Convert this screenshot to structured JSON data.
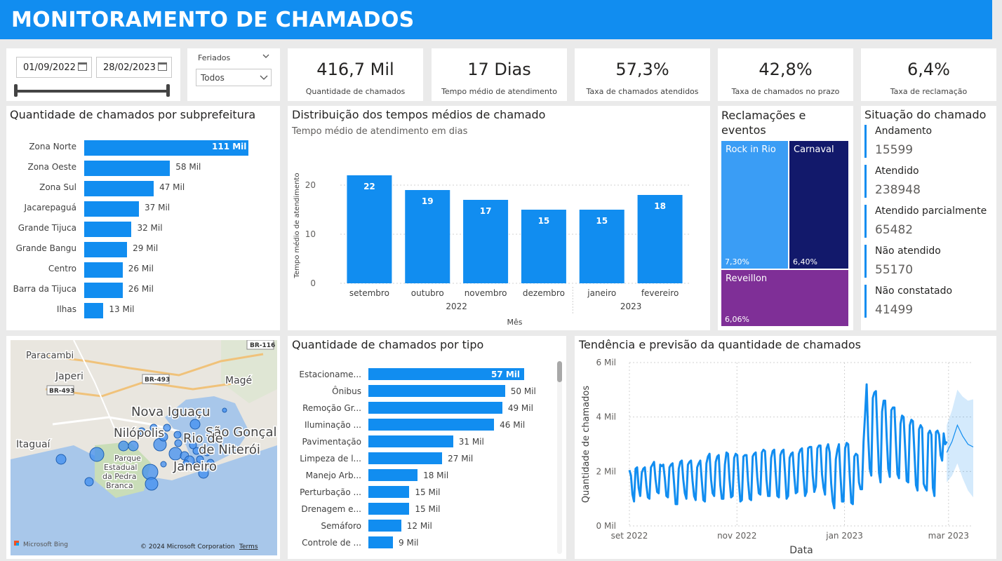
{
  "header": {
    "title": "MONITORAMENTO DE CHAMADOS"
  },
  "filters": {
    "date_start": "01/09/2022",
    "date_end": "28/02/2023",
    "holiday_label": "Feriados",
    "holiday_value": "Todos",
    "range_selected_fraction": 1.0
  },
  "kpis": [
    {
      "value": "416,7 Mil",
      "label": "Quantidade de chamados"
    },
    {
      "value": "17 Dias",
      "label": "Tempo médio de atendimento"
    },
    {
      "value": "57,3%",
      "label": "Taxa de chamados atendidos"
    },
    {
      "value": "42,8%",
      "label": "Taxa de chamados no prazo"
    },
    {
      "value": "6,4%",
      "label": "Taxa de reclamação"
    }
  ],
  "subpref": {
    "title": "Quantidade de chamados por subprefeitura",
    "items": [
      {
        "label": "Zona Norte",
        "value": 111,
        "text": "111 Mil"
      },
      {
        "label": "Zona Oeste",
        "value": 58,
        "text": "58 Mil"
      },
      {
        "label": "Zona Sul",
        "value": 47,
        "text": "47 Mil"
      },
      {
        "label": "Jacarepaguá",
        "value": 37,
        "text": "37 Mil"
      },
      {
        "label": "Grande Tijuca",
        "value": 32,
        "text": "32 Mil"
      },
      {
        "label": "Grande Bangu",
        "value": 29,
        "text": "29 Mil"
      },
      {
        "label": "Centro",
        "value": 26,
        "text": "26 Mil"
      },
      {
        "label": "Barra da Tijuca",
        "value": 26,
        "text": "26 Mil"
      },
      {
        "label": "Ilhas",
        "value": 13,
        "text": "13 Mil"
      }
    ]
  },
  "tempos": {
    "title": "Distribuição dos tempos médios de chamado",
    "subtitle": "Tempo médio de atendimento em dias",
    "chart_data": {
      "type": "bar",
      "categories": [
        "setembro",
        "outubro",
        "novembro",
        "dezembro",
        "janeiro",
        "fevereiro"
      ],
      "year_groups": [
        {
          "label": "2022",
          "span": 4
        },
        {
          "label": "2023",
          "span": 2
        }
      ],
      "values": [
        22,
        19,
        17,
        15,
        15,
        18
      ],
      "ylabel": "Tempo médio de atendimento",
      "xlabel": "Mês",
      "yticks": [
        "0",
        "10",
        "20"
      ],
      "ylim": [
        0,
        25
      ]
    }
  },
  "reclamacoes": {
    "title": "Reclamações e eventos",
    "items": [
      {
        "name": "Rock in Rio",
        "pct": "7,30%",
        "color": "#3a9df5"
      },
      {
        "name": "Carnaval",
        "pct": "6,40%",
        "color": "#12196b"
      },
      {
        "name": "Reveillon",
        "pct": "6,06%",
        "color": "#7f2f97"
      }
    ]
  },
  "situacao": {
    "title": "Situação do chamado",
    "items": [
      {
        "name": "Andamento",
        "value": "15599"
      },
      {
        "name": "Atendido",
        "value": "238948"
      },
      {
        "name": "Atendido parcialmente",
        "value": "65482"
      },
      {
        "name": "Não atendido",
        "value": "55170"
      },
      {
        "name": "Não constatado",
        "value": "41499"
      }
    ]
  },
  "map": {
    "labels": [
      "Paracambi",
      "Japeri",
      "Magé",
      "Nova Iguaçu",
      "Nilópolis",
      "São Gonçal",
      "Itaguaí",
      "de Niterói",
      "Rio de",
      "Janeiro",
      "Parque",
      "Estadual",
      "da Pedra",
      "Branca"
    ],
    "roads": [
      "BR-116",
      "BR-493",
      "BR-493"
    ],
    "bing_label": "Microsoft Bing",
    "copyright": "© 2024 Microsoft Corporation",
    "terms": "Terms"
  },
  "tipos": {
    "title": "Quantidade de chamados por tipo",
    "items": [
      {
        "label": "Estacioname...",
        "value": 57,
        "text": "57 Mil"
      },
      {
        "label": "Ônibus",
        "value": 50,
        "text": "50 Mil"
      },
      {
        "label": "Remoção Gr...",
        "value": 49,
        "text": "49 Mil"
      },
      {
        "label": "Iluminação ...",
        "value": 46,
        "text": "46 Mil"
      },
      {
        "label": "Pavimentação",
        "value": 31,
        "text": "31 Mil"
      },
      {
        "label": "Limpeza de l...",
        "value": 27,
        "text": "27 Mil"
      },
      {
        "label": "Manejo Arb...",
        "value": 18,
        "text": "18 Mil"
      },
      {
        "label": "Perturbação ...",
        "value": 15,
        "text": "15 Mil"
      },
      {
        "label": "Drenagem e...",
        "value": 15,
        "text": "15 Mil"
      },
      {
        "label": "Semáforo",
        "value": 12,
        "text": "12 Mil"
      },
      {
        "label": "Controle de ...",
        "value": 9,
        "text": "9 Mil"
      }
    ]
  },
  "tendencia": {
    "title": "Tendência e previsão da quantidade de chamados",
    "chart_data": {
      "type": "line",
      "ylabel": "Quantidade de chamados",
      "xlabel": "Data",
      "yticks": [
        "0 Mil",
        "2 Mil",
        "4 Mil",
        "6 Mil"
      ],
      "xticks": [
        "set 2022",
        "nov 2022",
        "jan 2023",
        "mar 2023"
      ],
      "ylim": [
        0,
        6000
      ],
      "x_start": "2022-09-01",
      "x_end": "2023-03-15",
      "actual_end": "2023-02-28",
      "series": [
        {
          "name": "",
          "values": [
            2050,
            1850,
            1150,
            900,
            2100,
            2150,
            1400,
            1100,
            1950,
            2100,
            2150,
            1500,
            1050,
            1000,
            2150,
            2250,
            2350,
            1700,
            1250,
            1200,
            2250,
            2200,
            2250,
            1750,
            1100,
            1050,
            2150,
            2250,
            2300,
            1550,
            800,
            800,
            2100,
            2350,
            2400,
            1700,
            1200,
            1000,
            2250,
            2350,
            2400,
            1650,
            1100,
            950,
            2150,
            2300,
            2400,
            1650,
            950,
            900,
            2300,
            2550,
            2650,
            1700,
            1200,
            1100,
            2350,
            2550,
            2600,
            1500,
            1000,
            1000,
            2250,
            2700,
            2650,
            1700,
            1050,
            1100,
            2500,
            2650,
            2600,
            1650,
            900,
            950,
            2550,
            2600,
            2600,
            1650,
            1000,
            950,
            2550,
            2650,
            2700,
            1800,
            1200,
            1150,
            2700,
            2800,
            2750,
            1700,
            1100,
            1100,
            2500,
            2750,
            2800,
            1900,
            1100,
            1050,
            2600,
            2750,
            2800,
            1950,
            1000,
            1100,
            2500,
            2650,
            2700,
            1850,
            1200,
            1250,
            2650,
            2800,
            2850,
            1850,
            1100,
            1250,
            2850,
            2900,
            2900,
            1850,
            1250,
            1450,
            2850,
            2950,
            2950,
            1900,
            1400,
            1150,
            2850,
            3000,
            2700,
            1550,
            900,
            650,
            2450,
            2800,
            3000,
            1850,
            900,
            900,
            2850,
            3050,
            3000,
            1850,
            850,
            800,
            2550,
            2650,
            2600,
            1600,
            1350,
            1350,
            3100,
            4100,
            5200,
            3300,
            2100,
            1850,
            4700,
            4900,
            4950,
            3400,
            1950,
            1600,
            4200,
            4600,
            4600,
            3250,
            2100,
            1800,
            4250,
            4350,
            4350,
            3000,
            1900,
            1750,
            3750,
            4050,
            4000,
            2850,
            1650,
            1600,
            3700,
            3900,
            3850,
            2700,
            1500,
            1300,
            3550,
            3700,
            3600,
            1550,
            1400,
            1300,
            3400,
            3500,
            3350,
            1400,
            1100,
            3450,
            3500,
            3350,
            2600,
            2400,
            3400,
            3000,
            3100
          ]
        },
        {
          "name": "previsão",
          "values": [
            2700,
            3100,
            3700,
            3300,
            3000,
            2900
          ]
        }
      ]
    }
  }
}
